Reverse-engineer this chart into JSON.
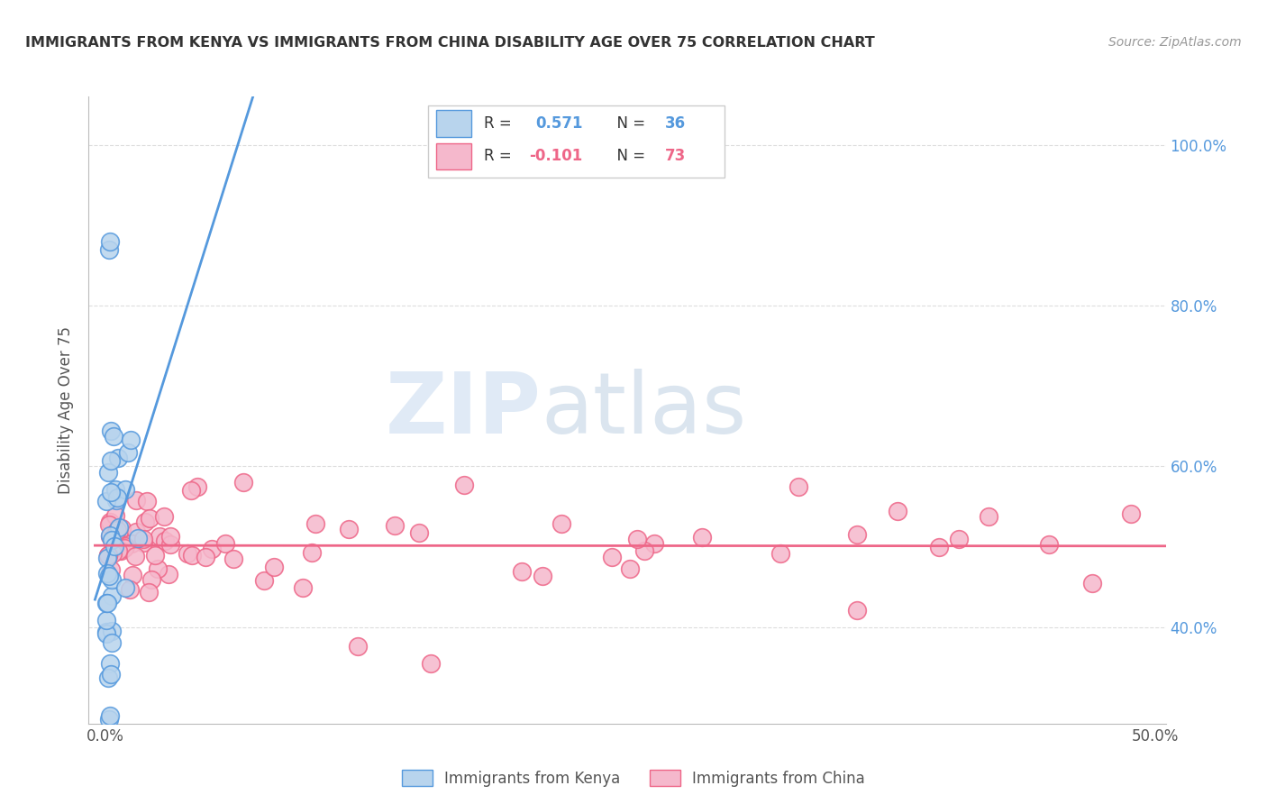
{
  "title": "IMMIGRANTS FROM KENYA VS IMMIGRANTS FROM CHINA DISABILITY AGE OVER 75 CORRELATION CHART",
  "source": "Source: ZipAtlas.com",
  "ylabel": "Disability Age Over 75",
  "legend_kenya": "Immigrants from Kenya",
  "legend_china": "Immigrants from China",
  "r_kenya": "0.571",
  "n_kenya": "36",
  "r_china": "-0.101",
  "n_china": "73",
  "color_kenya": "#b8d4ed",
  "color_china": "#f5b8cc",
  "line_color_kenya": "#5599dd",
  "line_color_china": "#ee6688",
  "right_axis_color": "#5599dd",
  "background_color": "#ffffff",
  "watermark_zip": "ZIP",
  "watermark_atlas": "atlas",
  "grid_color": "#dddddd",
  "title_color": "#333333",
  "source_color": "#999999",
  "xlim": [
    0.0,
    0.505
  ],
  "ylim": [
    0.28,
    1.06
  ],
  "yticks": [
    0.4,
    0.6,
    0.8,
    1.0
  ],
  "kenya_x": [
    0.0002,
    0.0004,
    0.0005,
    0.0006,
    0.0007,
    0.0008,
    0.0009,
    0.001,
    0.0012,
    0.0013,
    0.0014,
    0.0015,
    0.0016,
    0.0017,
    0.0018,
    0.002,
    0.0022,
    0.0024,
    0.0026,
    0.003,
    0.0032,
    0.0035,
    0.004,
    0.005,
    0.0006,
    0.0008,
    0.001,
    0.0012,
    0.0014,
    0.0016,
    0.002,
    0.0025,
    0.0018,
    0.002,
    0.003,
    0.004
  ],
  "kenya_y": [
    0.508,
    0.497,
    0.503,
    0.512,
    0.518,
    0.523,
    0.53,
    0.536,
    0.542,
    0.548,
    0.555,
    0.56,
    0.566,
    0.572,
    0.578,
    0.585,
    0.592,
    0.6,
    0.608,
    0.618,
    0.625,
    0.635,
    0.648,
    0.665,
    0.625,
    0.638,
    0.648,
    0.655,
    0.66,
    0.667,
    0.68,
    0.695,
    0.86,
    0.875,
    0.28,
    0.285
  ],
  "china_x": [
    0.001,
    0.002,
    0.003,
    0.004,
    0.005,
    0.006,
    0.007,
    0.008,
    0.009,
    0.01,
    0.012,
    0.013,
    0.015,
    0.016,
    0.018,
    0.02,
    0.022,
    0.024,
    0.026,
    0.028,
    0.03,
    0.032,
    0.034,
    0.036,
    0.038,
    0.04,
    0.042,
    0.045,
    0.048,
    0.05,
    0.055,
    0.06,
    0.065,
    0.07,
    0.075,
    0.08,
    0.09,
    0.1,
    0.11,
    0.12,
    0.13,
    0.14,
    0.15,
    0.16,
    0.17,
    0.18,
    0.2,
    0.22,
    0.24,
    0.26,
    0.28,
    0.3,
    0.32,
    0.34,
    0.36,
    0.38,
    0.4,
    0.42,
    0.44,
    0.46,
    0.48,
    0.49,
    0.003,
    0.005,
    0.007,
    0.01,
    0.015,
    0.02,
    0.025,
    0.03,
    0.04,
    0.06,
    0.08
  ],
  "china_y": [
    0.5,
    0.498,
    0.503,
    0.505,
    0.497,
    0.508,
    0.495,
    0.502,
    0.505,
    0.5,
    0.498,
    0.503,
    0.497,
    0.502,
    0.5,
    0.498,
    0.503,
    0.497,
    0.502,
    0.5,
    0.498,
    0.503,
    0.497,
    0.502,
    0.5,
    0.498,
    0.503,
    0.497,
    0.502,
    0.5,
    0.498,
    0.503,
    0.497,
    0.502,
    0.5,
    0.498,
    0.503,
    0.497,
    0.502,
    0.5,
    0.498,
    0.503,
    0.497,
    0.502,
    0.5,
    0.498,
    0.503,
    0.497,
    0.502,
    0.5,
    0.498,
    0.503,
    0.497,
    0.502,
    0.5,
    0.498,
    0.503,
    0.497,
    0.502,
    0.5,
    0.498,
    0.448,
    0.53,
    0.54,
    0.548,
    0.555,
    0.558,
    0.56,
    0.552,
    0.545,
    0.538,
    0.57,
    0.565
  ]
}
